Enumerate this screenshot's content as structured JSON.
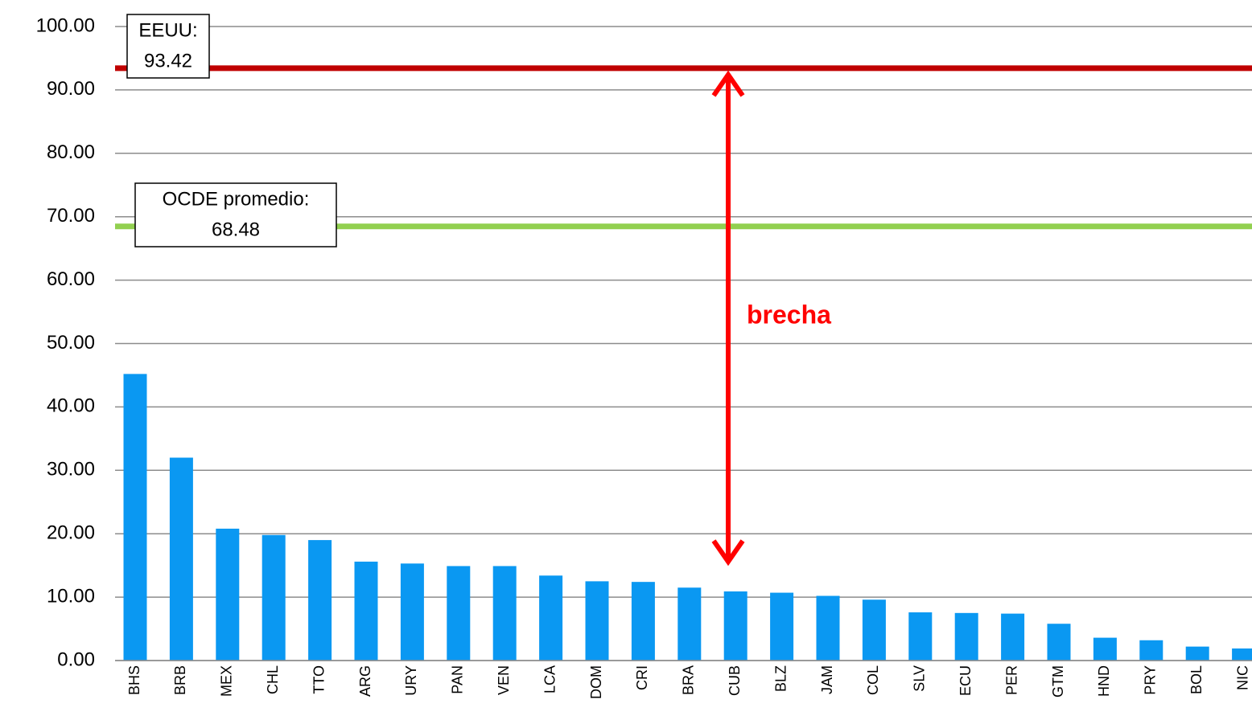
{
  "chart_data": {
    "type": "bar",
    "categories": [
      "BHS",
      "BRB",
      "MEX",
      "CHL",
      "TTO",
      "ARG",
      "URY",
      "PAN",
      "VEN",
      "LCA",
      "DOM",
      "CRI",
      "BRA",
      "CUB",
      "BLZ",
      "JAM",
      "COL",
      "SLV",
      "ECU",
      "PER",
      "GTM",
      "HND",
      "PRY",
      "BOL",
      "NIC"
    ],
    "values": [
      45.2,
      32.0,
      20.8,
      19.8,
      19.0,
      15.6,
      15.3,
      14.9,
      14.9,
      13.4,
      12.5,
      12.4,
      11.5,
      10.9,
      10.7,
      10.2,
      9.6,
      7.6,
      7.5,
      7.4,
      5.8,
      3.6,
      3.2,
      2.2,
      1.9
    ],
    "color": "#0a98f2",
    "ylim": [
      0,
      100
    ],
    "yticks": [
      {
        "value": 0,
        "label": "0.00"
      },
      {
        "value": 10,
        "label": "10.00"
      },
      {
        "value": 20,
        "label": "20.00"
      },
      {
        "value": 30,
        "label": "30.00"
      },
      {
        "value": 40,
        "label": "40.00"
      },
      {
        "value": 50,
        "label": "50.00"
      },
      {
        "value": 60,
        "label": "60.00"
      },
      {
        "value": 70,
        "label": "70.00"
      },
      {
        "value": 80,
        "label": "80.00"
      },
      {
        "value": 90,
        "label": "90.00"
      },
      {
        "value": 100,
        "label": "100.00"
      }
    ],
    "grid": true,
    "reference_lines": [
      {
        "name": "EEUU:",
        "value": 93.42,
        "color": "#c00000"
      },
      {
        "name": "OCDE promedio:",
        "value": 68.48,
        "color": "#92d050"
      }
    ],
    "annotation": "brecha"
  }
}
